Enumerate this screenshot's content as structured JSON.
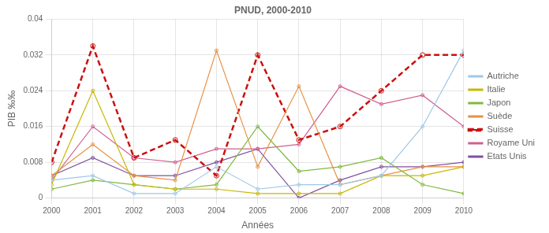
{
  "chart_data": {
    "type": "line",
    "title": "PNUD, 2000-2010",
    "x_label": "Années",
    "y_label": "PIB ‰‰",
    "x": [
      2000,
      2001,
      2002,
      2003,
      2004,
      2005,
      2006,
      2007,
      2008,
      2009,
      2010
    ],
    "series": [
      {
        "name": "Autriche",
        "color": "#a0c8e8",
        "marker": "circle",
        "line_style": "solid",
        "values": [
          0.004,
          0.005,
          0.001,
          0.001,
          0.007,
          0.002,
          0.003,
          0.003,
          0.005,
          0.016,
          0.033
        ]
      },
      {
        "name": "Italie",
        "color": "#c8b800",
        "marker": "circle",
        "line_style": "solid",
        "values": [
          0.003,
          0.024,
          0.003,
          0.002,
          0.002,
          0.001,
          0.001,
          0.001,
          0.005,
          0.005,
          0.007
        ]
      },
      {
        "name": "Japon",
        "color": "#80b840",
        "marker": "circle",
        "line_style": "solid",
        "values": [
          0.002,
          0.004,
          0.003,
          0.002,
          0.003,
          0.016,
          0.006,
          0.007,
          0.009,
          0.003,
          0.001
        ]
      },
      {
        "name": "Suède",
        "color": "#e89040",
        "marker": "circle",
        "line_style": "solid",
        "values": [
          0.005,
          0.012,
          0.005,
          0.004,
          0.033,
          0.007,
          0.025,
          0.003,
          0.005,
          0.007,
          0.007
        ]
      },
      {
        "name": "Suisse",
        "color": "#cc1010",
        "marker": "circle",
        "line_style": "dashed",
        "values": [
          0.008,
          0.034,
          0.009,
          0.013,
          0.005,
          0.032,
          0.013,
          0.016,
          0.024,
          0.032,
          0.032
        ]
      },
      {
        "name": "Royame Uni",
        "color": "#d06090",
        "marker": "circle",
        "line_style": "solid",
        "values": [
          0.004,
          0.016,
          0.009,
          0.008,
          0.011,
          0.011,
          0.012,
          0.025,
          0.021,
          0.023,
          0.016
        ]
      },
      {
        "name": "Etats Unis",
        "color": "#8050a0",
        "marker": "circle",
        "line_style": "solid",
        "values": [
          0.005,
          0.009,
          0.005,
          0.005,
          0.008,
          0.011,
          0.0,
          0.004,
          0.007,
          0.007,
          0.008
        ]
      }
    ],
    "xlim": [
      2000,
      2010
    ],
    "xticks": [
      2000,
      2001,
      2002,
      2003,
      2004,
      2005,
      2006,
      2007,
      2008,
      2009,
      2010
    ],
    "ylim": [
      0,
      0.04
    ],
    "yticks": [
      0,
      0.008,
      0.016,
      0.024,
      0.032,
      0.04
    ],
    "grid": true,
    "legend": "right"
  }
}
